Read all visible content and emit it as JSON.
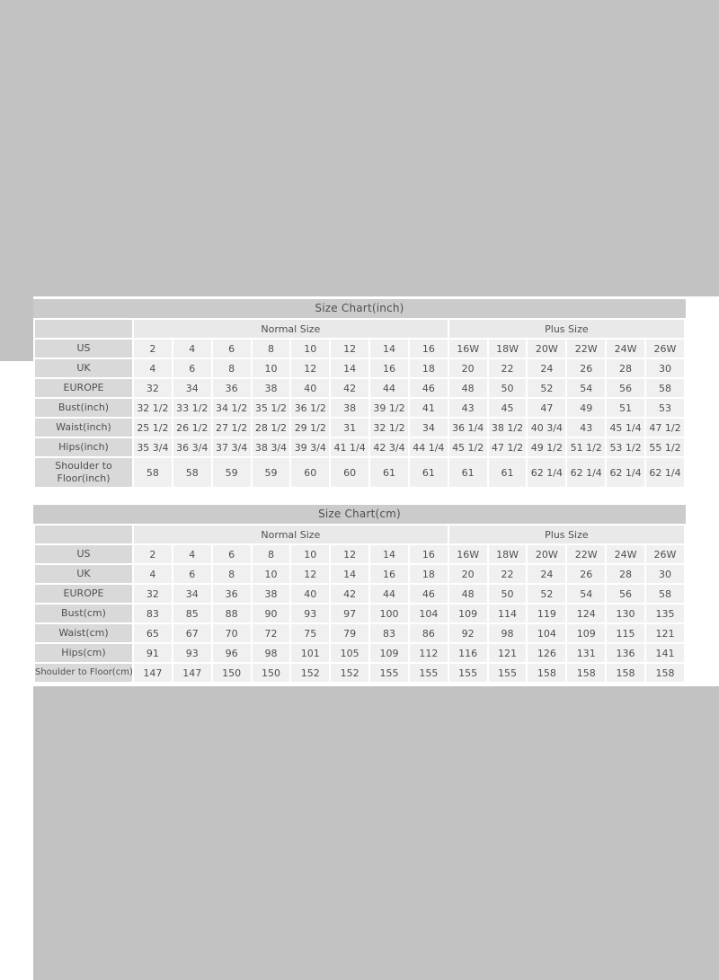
{
  "page": {
    "background_color": "#c2c2c2",
    "panel_background": "#ffffff",
    "title_bar_color": "#cbcbcb",
    "label_cell_color": "#d9d9d9",
    "group_cell_color": "#e9e9e9",
    "value_cell_color": "#f0f0f0",
    "text_color": "#4f4f4f"
  },
  "tables": [
    {
      "name": "size-chart-inch",
      "title": "Size Chart(inch)",
      "group_headers": [
        {
          "label": "Normal Size",
          "span": 8
        },
        {
          "label": "Plus Size",
          "span": 6
        }
      ],
      "rows": [
        {
          "label": "US",
          "values": [
            "2",
            "4",
            "6",
            "8",
            "10",
            "12",
            "14",
            "16",
            "16W",
            "18W",
            "20W",
            "22W",
            "24W",
            "26W"
          ]
        },
        {
          "label": "UK",
          "values": [
            "4",
            "6",
            "8",
            "10",
            "12",
            "14",
            "16",
            "18",
            "20",
            "22",
            "24",
            "26",
            "28",
            "30"
          ]
        },
        {
          "label": "EUROPE",
          "values": [
            "32",
            "34",
            "36",
            "38",
            "40",
            "42",
            "44",
            "46",
            "48",
            "50",
            "52",
            "54",
            "56",
            "58"
          ]
        },
        {
          "label": "Bust(inch)",
          "values": [
            "32 1/2",
            "33 1/2",
            "34 1/2",
            "35 1/2",
            "36 1/2",
            "38",
            "39 1/2",
            "41",
            "43",
            "45",
            "47",
            "49",
            "51",
            "53"
          ]
        },
        {
          "label": "Waist(inch)",
          "values": [
            "25 1/2",
            "26 1/2",
            "27 1/2",
            "28 1/2",
            "29 1/2",
            "31",
            "32 1/2",
            "34",
            "36 1/4",
            "38 1/2",
            "40 3/4",
            "43",
            "45 1/4",
            "47 1/2"
          ]
        },
        {
          "label": "Hips(inch)",
          "values": [
            "35 3/4",
            "36 3/4",
            "37 3/4",
            "38 3/4",
            "39 3/4",
            "41 1/4",
            "42 3/4",
            "44 1/4",
            "45 1/2",
            "47 1/2",
            "49 1/2",
            "51 1/2",
            "53 1/2",
            "55 1/2"
          ]
        },
        {
          "label": "Shoulder to Floor(inch)",
          "tall": true,
          "values": [
            "58",
            "58",
            "59",
            "59",
            "60",
            "60",
            "61",
            "61",
            "61",
            "61",
            "62 1/4",
            "62 1/4",
            "62 1/4",
            "62 1/4"
          ]
        }
      ]
    },
    {
      "name": "size-chart-cm",
      "title": "Size Chart(cm)",
      "group_headers": [
        {
          "label": "Normal Size",
          "span": 8
        },
        {
          "label": "Plus Size",
          "span": 6
        }
      ],
      "rows": [
        {
          "label": "US",
          "values": [
            "2",
            "4",
            "6",
            "8",
            "10",
            "12",
            "14",
            "16",
            "16W",
            "18W",
            "20W",
            "22W",
            "24W",
            "26W"
          ]
        },
        {
          "label": "UK",
          "values": [
            "4",
            "6",
            "8",
            "10",
            "12",
            "14",
            "16",
            "18",
            "20",
            "22",
            "24",
            "26",
            "28",
            "30"
          ]
        },
        {
          "label": "EUROPE",
          "values": [
            "32",
            "34",
            "36",
            "38",
            "40",
            "42",
            "44",
            "46",
            "48",
            "50",
            "52",
            "54",
            "56",
            "58"
          ]
        },
        {
          "label": "Bust(cm)",
          "values": [
            "83",
            "85",
            "88",
            "90",
            "93",
            "97",
            "100",
            "104",
            "109",
            "114",
            "119",
            "124",
            "130",
            "135"
          ]
        },
        {
          "label": "Waist(cm)",
          "values": [
            "65",
            "67",
            "70",
            "72",
            "75",
            "79",
            "83",
            "86",
            "92",
            "98",
            "104",
            "109",
            "115",
            "121"
          ]
        },
        {
          "label": "Hips(cm)",
          "values": [
            "91",
            "93",
            "96",
            "98",
            "101",
            "105",
            "109",
            "112",
            "116",
            "121",
            "126",
            "131",
            "136",
            "141"
          ]
        },
        {
          "label": "Shoulder to Floor(cm)",
          "compact": true,
          "values": [
            "147",
            "147",
            "150",
            "150",
            "152",
            "152",
            "155",
            "155",
            "155",
            "155",
            "158",
            "158",
            "158",
            "158"
          ]
        }
      ]
    }
  ]
}
